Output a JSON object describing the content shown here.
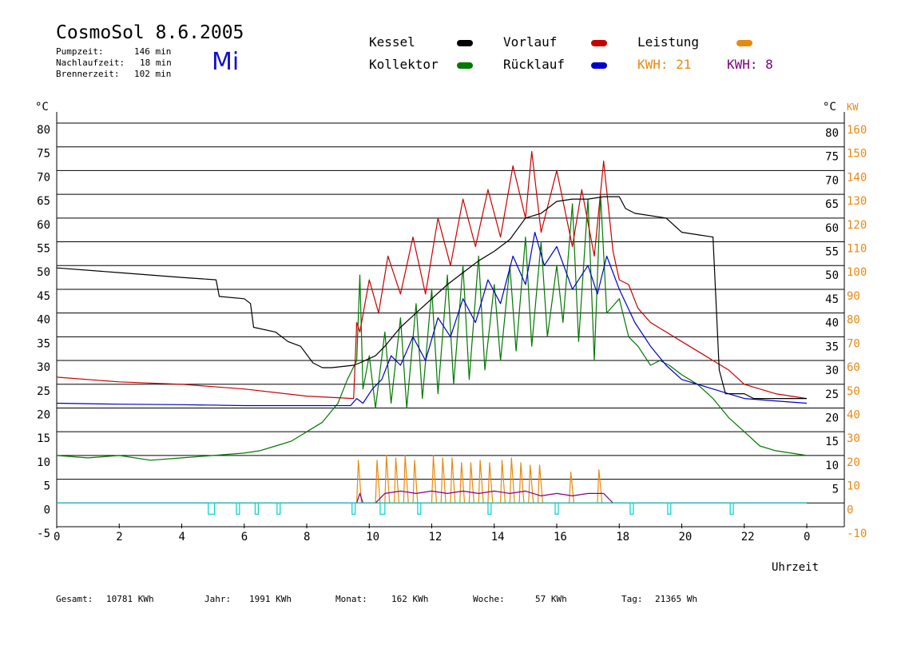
{
  "header": {
    "title": "CosmoSol 8.6.2005",
    "day": "Mi",
    "stats": [
      {
        "label": "Pumpzeit:",
        "value": "146 min"
      },
      {
        "label": "Nachlaufzeit:",
        "value": "18 min"
      },
      {
        "label": "Brennerzeit:",
        "value": "102 min"
      }
    ]
  },
  "legend": {
    "kessel": "Kessel",
    "kollektor": "Kollektor",
    "vorlauf": "Vorlauf",
    "ruecklauf": "Rücklauf",
    "leistung": "Leistung",
    "kwh_solar": "KWH: 21",
    "kwh_brenner": "KWH: 8"
  },
  "footer": {
    "gesamt_label": "Gesamt:",
    "gesamt_value": "10781 KWh",
    "jahr_label": "Jahr:",
    "jahr_value": "1991 KWh",
    "monat_label": "Monat:",
    "monat_value": "162 KWh",
    "woche_label": "Woche:",
    "woche_value": "57 KWh",
    "tag_label": "Tag:",
    "tag_value": "21365 Wh"
  },
  "colors": {
    "kessel": "#000000",
    "kollektor": "#007800",
    "vorlauf": "#c80000",
    "ruecklauf": "#0000c8",
    "leistung": "#e88a10",
    "brenner": "#800080",
    "pumpe": "#00d0d0"
  },
  "chart_data": {
    "type": "line",
    "xlabel": "Uhrzeit",
    "ylabel_left": "°C",
    "ylabel_right": "KW",
    "xlim": [
      0,
      24
    ],
    "ylim_left": [
      -5,
      80
    ],
    "ylim_right": [
      -10,
      160
    ],
    "x_ticks": [
      "0",
      "2",
      "4",
      "6",
      "8",
      "10",
      "12",
      "14",
      "16",
      "18",
      "20",
      "22",
      "0"
    ],
    "y_ticks_left": [
      "80",
      "75",
      "70",
      "65",
      "60",
      "55",
      "50",
      "45",
      "40",
      "35",
      "30",
      "25",
      "20",
      "15",
      "10",
      "5",
      "0",
      "-5"
    ],
    "y_ticks_right_temp": [
      "80",
      "75",
      "70",
      "65",
      "60",
      "55",
      "50",
      "45",
      "40",
      "35",
      "30",
      "25",
      "20",
      "15",
      "10",
      "5"
    ],
    "y_ticks_right_kw": [
      "160",
      "150",
      "140",
      "130",
      "120",
      "110",
      "100",
      "90",
      "80",
      "70",
      "60",
      "50",
      "40",
      "30",
      "20",
      "10",
      "0",
      "-10"
    ],
    "series": [
      {
        "name": "Kessel",
        "color": "#000000",
        "x": [
          0,
          2,
          4,
          5.1,
          5.2,
          6,
          6.2,
          6.3,
          7,
          7.4,
          7.8,
          8.2,
          8.5,
          8.8,
          9.5,
          9.7,
          10.2,
          10.5,
          11,
          11.5,
          12,
          12.5,
          13,
          13.5,
          14,
          14.5,
          15,
          15.5,
          16,
          16.5,
          17,
          17.5,
          18,
          18.2,
          18.5,
          19.5,
          20,
          20.5,
          21,
          21.1,
          21.2,
          21.4,
          22,
          22.3,
          24
        ],
        "y": [
          49.5,
          48.5,
          47.5,
          47,
          43.5,
          43,
          42,
          37,
          36,
          34,
          33,
          29.5,
          28.5,
          28.5,
          29,
          29.5,
          31,
          33,
          37,
          40,
          43,
          46,
          48.5,
          51,
          53,
          55.5,
          60,
          61,
          63.5,
          64,
          64,
          64.5,
          64.5,
          62,
          61,
          60,
          57,
          56.5,
          56,
          42,
          28,
          23,
          23,
          22,
          22
        ]
      },
      {
        "name": "Vorlauf",
        "color": "#c80000",
        "x": [
          0,
          2,
          4,
          6,
          8,
          9.5,
          9.6,
          9.7,
          10,
          10.3,
          10.6,
          11,
          11.4,
          11.8,
          12.2,
          12.6,
          13,
          13.4,
          13.8,
          14.2,
          14.6,
          15,
          15.2,
          15.5,
          16,
          16.5,
          16.8,
          17.2,
          17.5,
          17.8,
          18,
          18.3,
          18.6,
          19,
          19.5,
          20,
          20.5,
          21,
          21.5,
          22,
          22.5,
          23,
          24
        ],
        "y": [
          26.5,
          25.5,
          25,
          24,
          22.5,
          22,
          38,
          36,
          47,
          40,
          52,
          44,
          56,
          44,
          60,
          50,
          64,
          54,
          66,
          56,
          71,
          60,
          74,
          57,
          70,
          54,
          66,
          52,
          72,
          53,
          47,
          46,
          41,
          38,
          36,
          34,
          32,
          30,
          28,
          25,
          24,
          23,
          22
        ]
      },
      {
        "name": "Rücklauf",
        "color": "#0000c8",
        "x": [
          0,
          2,
          4,
          6,
          8,
          9.4,
          9.6,
          9.8,
          10.1,
          10.4,
          10.7,
          11,
          11.4,
          11.8,
          12.2,
          12.6,
          13,
          13.4,
          13.8,
          14.2,
          14.6,
          15,
          15.3,
          15.6,
          16,
          16.5,
          17,
          17.3,
          17.6,
          18,
          18.5,
          19,
          19.5,
          20,
          21,
          22,
          23,
          24
        ],
        "y": [
          21,
          20.8,
          20.7,
          20.5,
          20.5,
          20.5,
          22,
          21,
          24,
          26,
          31,
          29,
          35,
          30,
          39,
          35,
          43,
          38,
          47,
          42,
          52,
          46,
          57,
          50,
          54,
          45,
          50,
          44,
          52,
          45,
          38,
          33,
          29,
          26,
          24,
          22,
          21.5,
          21
        ]
      },
      {
        "name": "Kollektor",
        "color": "#007800",
        "x": [
          0,
          1,
          2,
          3,
          4,
          5,
          6,
          6.5,
          7,
          7.5,
          8,
          8.5,
          9,
          9.3,
          9.6,
          9.7,
          9.8,
          10,
          10.2,
          10.5,
          10.7,
          11,
          11.2,
          11.5,
          11.7,
          12,
          12.2,
          12.5,
          12.7,
          13,
          13.2,
          13.5,
          13.7,
          14,
          14.2,
          14.5,
          14.7,
          15,
          15.2,
          15.5,
          15.7,
          16,
          16.2,
          16.5,
          16.7,
          17,
          17.2,
          17.4,
          17.6,
          18,
          18.3,
          18.6,
          19,
          19.3,
          19.6,
          20,
          20.5,
          21,
          21.5,
          22,
          22.5,
          23,
          24
        ],
        "y": [
          10,
          9.5,
          10,
          9,
          9.5,
          10,
          10.5,
          11,
          12,
          13,
          15,
          17,
          21,
          26,
          30,
          48,
          24,
          31,
          20,
          36,
          21,
          39,
          20,
          42,
          22,
          45,
          23,
          48,
          25,
          50,
          26,
          52,
          28,
          46,
          30,
          50,
          32,
          56,
          33,
          55,
          35,
          50,
          38,
          63,
          34,
          64,
          30,
          65,
          40,
          43,
          35,
          33,
          29,
          30,
          29,
          27,
          25,
          22,
          18,
          15,
          12,
          11,
          10
        ]
      },
      {
        "name": "Leistung",
        "color": "#e88a10",
        "axis": "right",
        "x": [
          9.6,
          9.65,
          9.75,
          10.2,
          10.25,
          10.35,
          10.5,
          10.55,
          10.65,
          10.8,
          10.85,
          10.95,
          11.1,
          11.15,
          11.25,
          11.4,
          11.45,
          11.55,
          12,
          12.05,
          12.15,
          12.3,
          12.35,
          12.45,
          12.6,
          12.65,
          12.75,
          12.9,
          12.95,
          13.05,
          13.2,
          13.25,
          13.35,
          13.5,
          13.55,
          13.65,
          13.8,
          13.85,
          13.95,
          14.2,
          14.25,
          14.35,
          14.5,
          14.55,
          14.65,
          14.8,
          14.85,
          14.95,
          15.1,
          15.15,
          15.25,
          15.4,
          15.45,
          15.55,
          16.4,
          16.45,
          16.55,
          17.3,
          17.35,
          17.45
        ],
        "y": [
          0,
          18,
          0,
          0,
          18,
          0,
          0,
          20,
          0,
          0,
          19,
          0,
          0,
          20,
          0,
          0,
          18,
          0,
          0,
          20,
          0,
          0,
          19,
          0,
          0,
          19,
          0,
          0,
          17,
          0,
          0,
          17,
          0,
          0,
          18,
          0,
          0,
          17,
          0,
          0,
          18,
          0,
          0,
          19,
          0,
          0,
          17,
          0,
          0,
          16,
          0,
          0,
          16,
          0,
          0,
          13,
          0,
          0,
          14,
          0
        ]
      },
      {
        "name": "Brenner",
        "color": "#800080",
        "axis": "right",
        "x": [
          9.6,
          9.7,
          9.8,
          10.2,
          10.5,
          11,
          11.5,
          12,
          12.5,
          13,
          13.5,
          14,
          14.5,
          15,
          15.5,
          16,
          16.5,
          17,
          17.5,
          17.8
        ],
        "y": [
          0,
          4,
          0,
          0,
          4,
          5,
          4,
          5,
          4,
          5,
          4,
          5,
          4,
          5,
          3,
          4,
          3,
          4,
          4,
          0
        ]
      }
    ],
    "pumpe_on": [
      [
        4.85,
        5.05
      ],
      [
        5.75,
        5.85
      ],
      [
        6.35,
        6.45
      ],
      [
        7.05,
        7.15
      ],
      [
        9.45,
        9.55
      ],
      [
        10.35,
        10.5
      ],
      [
        11.55,
        11.65
      ],
      [
        13.8,
        13.9
      ],
      [
        15.95,
        16.05
      ],
      [
        18.35,
        18.45
      ],
      [
        19.55,
        19.65
      ],
      [
        21.55,
        21.65
      ]
    ]
  }
}
